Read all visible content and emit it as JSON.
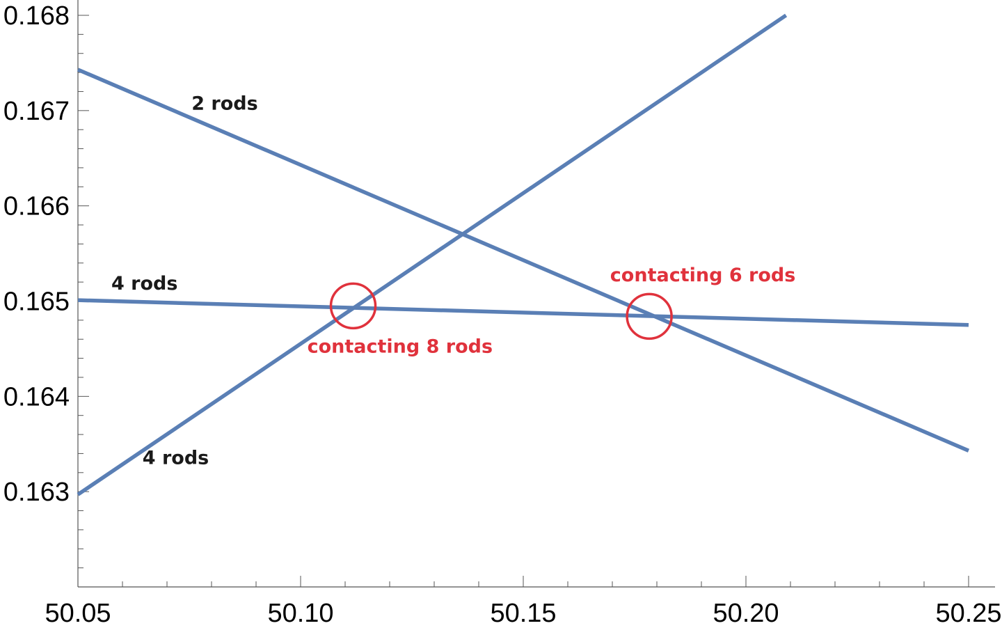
{
  "chart_data": {
    "type": "line",
    "title": "",
    "xlabel": "",
    "ylabel": "",
    "xlim": [
      50.05,
      50.25
    ],
    "ylim": [
      0.162,
      0.168
    ],
    "x_ticks": [
      {
        "value": 50.05,
        "label": "50.05"
      },
      {
        "value": 50.1,
        "label": "50.10"
      },
      {
        "value": 50.15,
        "label": "50.15"
      },
      {
        "value": 50.2,
        "label": "50.20"
      },
      {
        "value": 50.25,
        "label": "50.25"
      }
    ],
    "y_ticks": [
      {
        "value": 0.163,
        "label": "0.163"
      },
      {
        "value": 0.164,
        "label": "0.164"
      },
      {
        "value": 0.165,
        "label": "0.165"
      },
      {
        "value": 0.166,
        "label": "0.166"
      },
      {
        "value": 0.167,
        "label": "0.167"
      },
      {
        "value": 0.168,
        "label": "0.168"
      }
    ],
    "x_minor_step": 0.01,
    "y_minor_step": 0.0002,
    "grid": false,
    "line_color": "#5a7fb5",
    "series": [
      {
        "name": "2 rods",
        "x": [
          50.05,
          50.25
        ],
        "y": [
          0.16743,
          0.16343
        ]
      },
      {
        "name": "4 rods",
        "x": [
          50.05,
          50.25
        ],
        "y": [
          0.16501,
          0.16475
        ]
      },
      {
        "name": "4 rods",
        "x": [
          50.05,
          50.209
        ],
        "y": [
          0.16297,
          0.168
        ]
      }
    ],
    "series_labels": [
      {
        "text": "2 rods",
        "x": 50.0755,
        "y": 0.16701,
        "color": "#1a1a1a"
      },
      {
        "text": "4 rods",
        "x": 50.0575,
        "y": 0.16512,
        "color": "#1a1a1a"
      },
      {
        "text": "4 rods",
        "x": 50.0645,
        "y": 0.16329,
        "color": "#1a1a1a"
      }
    ],
    "annotations": [
      {
        "text": "contacting 8 rods",
        "label_x": 50.1015,
        "label_y": 0.16446,
        "circle_x": 50.1118,
        "circle_y": 0.16495,
        "color": "#e0323c"
      },
      {
        "text": "contacting 6 rods",
        "label_x": 50.1695,
        "label_y": 0.16521,
        "circle_x": 50.1783,
        "circle_y": 0.16484,
        "color": "#e0323c"
      }
    ]
  }
}
